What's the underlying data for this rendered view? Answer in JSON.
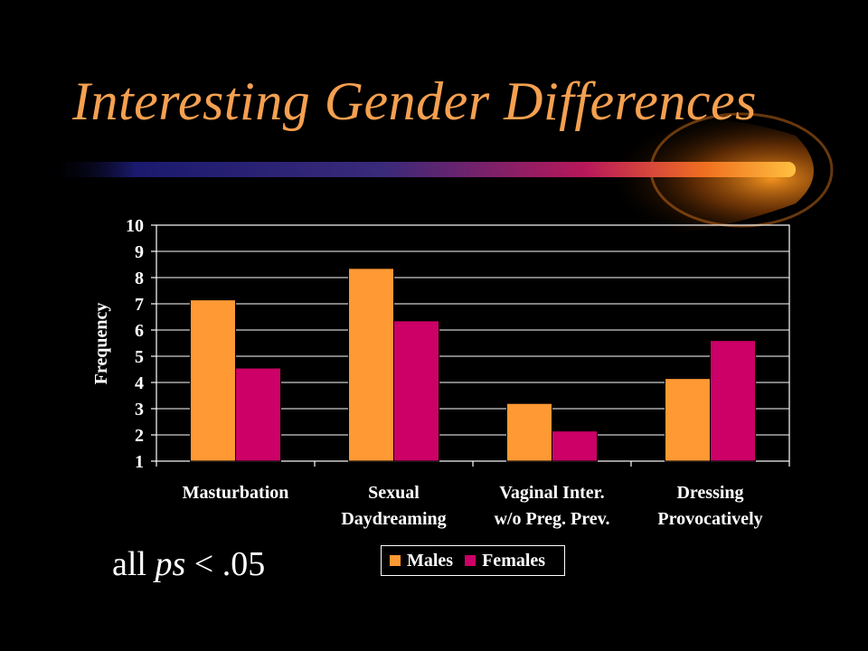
{
  "slide": {
    "title": "Interesting Gender Differences",
    "note_prefix": "all ",
    "note_italic": "ps",
    "note_suffix": " < .05"
  },
  "colors": {
    "title": "#F5A050",
    "males": "#FF9933",
    "females": "#CC0066",
    "background": "#000000"
  },
  "chart_data": {
    "type": "bar",
    "title": "",
    "xlabel": "",
    "ylabel": "Frequency",
    "ylim": [
      1,
      10
    ],
    "yticks": [
      "1",
      "2",
      "3",
      "4",
      "5",
      "6",
      "7",
      "8",
      "9",
      "10"
    ],
    "categories": [
      [
        "Masturbation"
      ],
      [
        "Sexual",
        "Daydreaming"
      ],
      [
        "Vaginal Inter.",
        "w/o Preg. Prev."
      ],
      [
        "Dressing",
        "Provocatively"
      ]
    ],
    "series": [
      {
        "name": "Males",
        "color": "#FF9933",
        "values": [
          7.15,
          8.35,
          3.2,
          4.15
        ]
      },
      {
        "name": "Females",
        "color": "#CC0066",
        "values": [
          4.55,
          6.35,
          2.15,
          5.6
        ]
      }
    ],
    "grid": true,
    "legend": "bottom"
  }
}
